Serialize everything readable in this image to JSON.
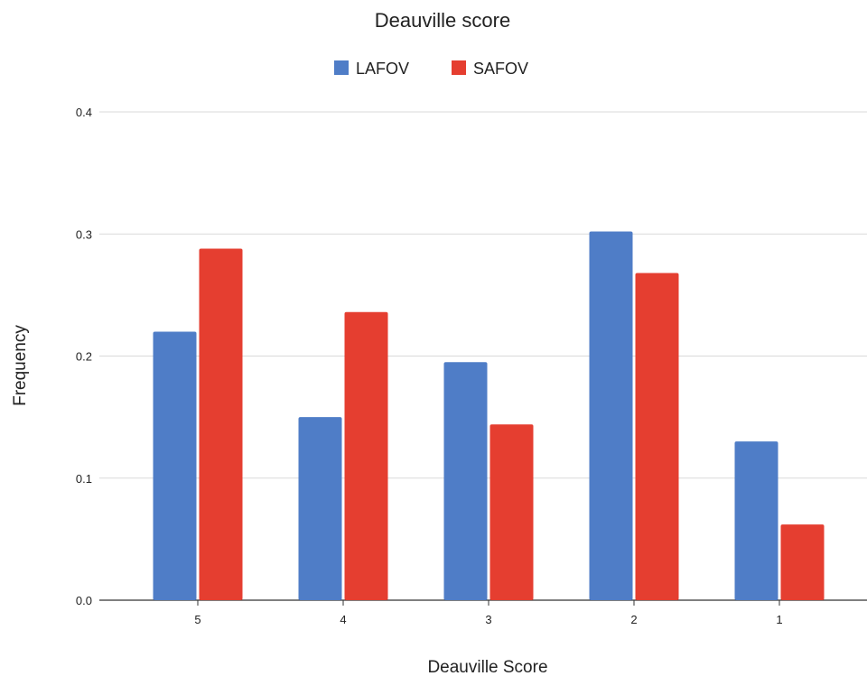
{
  "chart_data": {
    "type": "bar",
    "title": "Deauville score",
    "xlabel": "Deauville Score",
    "ylabel": "Frequency",
    "categories": [
      "5",
      "4",
      "3",
      "2",
      "1"
    ],
    "series": [
      {
        "name": "LAFOV",
        "color": "#4f7dc7",
        "values": [
          0.22,
          0.15,
          0.195,
          0.302,
          0.13
        ]
      },
      {
        "name": "SAFOV",
        "color": "#e53e30",
        "values": [
          0.288,
          0.236,
          0.144,
          0.268,
          0.062
        ]
      }
    ],
    "ylim": [
      0,
      0.4
    ],
    "yticks": [
      "0.0",
      "0.1",
      "0.2",
      "0.3",
      "0.4"
    ],
    "ytick_values": [
      0,
      0.1,
      0.2,
      0.3,
      0.4
    ],
    "grid": true,
    "legend_position": "top-center"
  }
}
